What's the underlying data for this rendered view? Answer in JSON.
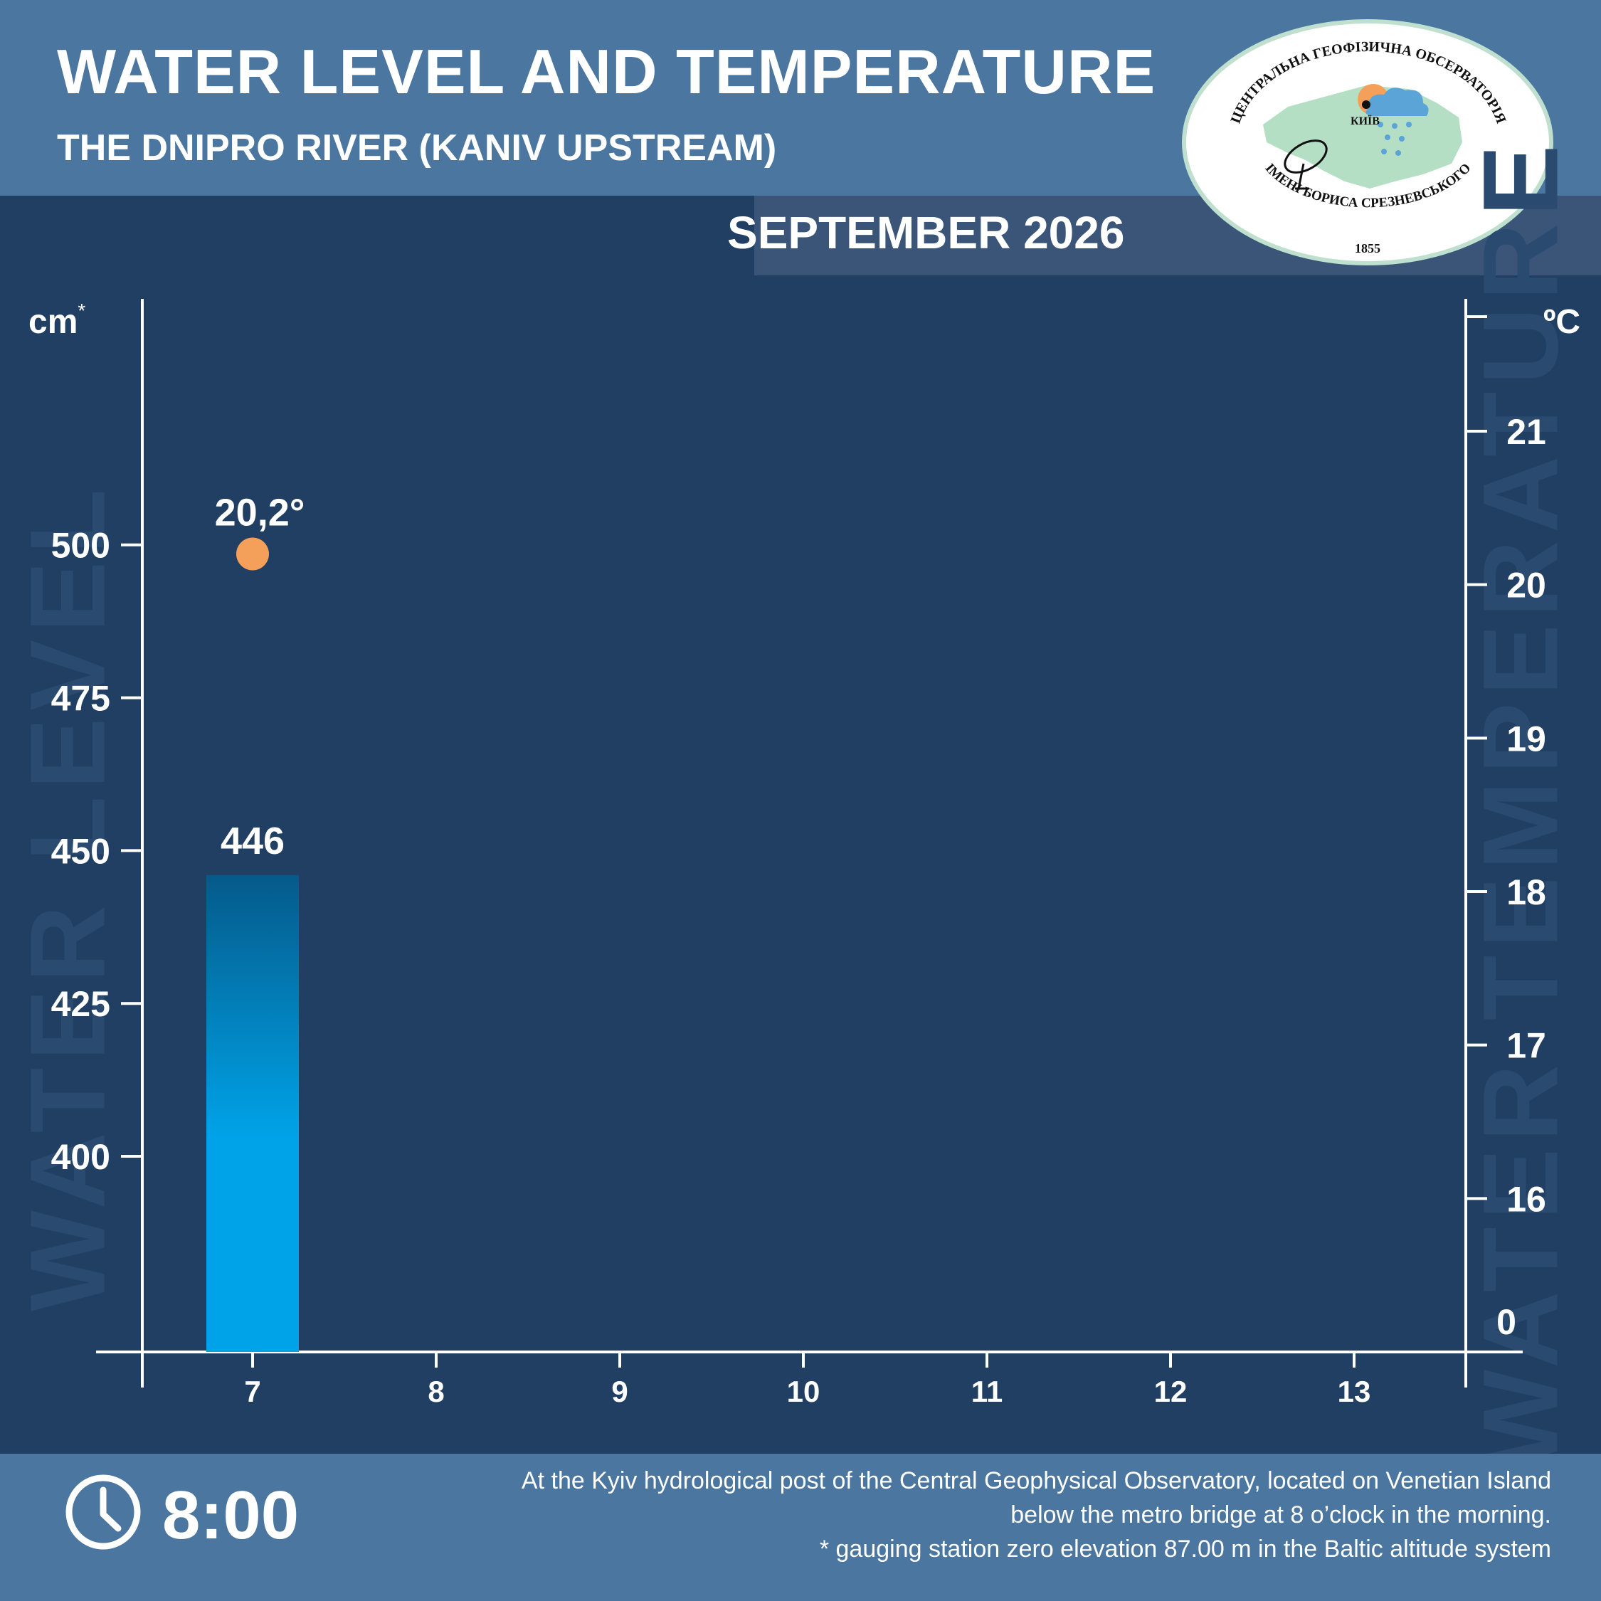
{
  "header": {
    "title": "WATER LEVEL AND TEMPERATURE",
    "subtitle": "THE DNIPRO RIVER (KANIV UPSTREAM)",
    "month": "SEPTEMBER 2026"
  },
  "logo": {
    "text_top": "ЦЕНТРАЛЬНА ГЕОФІЗИЧНА ОБСЕРВАТОРІЯ",
    "text_bottom": "ІМЕНІ БОРИСА СРЕЗНЕВСЬКОГО",
    "year": "1855",
    "city": "КИЇВ"
  },
  "watermarks": {
    "left": "WATER LEVEL",
    "right": "WATER TEMPERATURE"
  },
  "footer": {
    "time": "8:00",
    "note_lines": [
      "At the Kyiv hydrological post of the Central Geophysical Observatory, located on Venetian Island",
      "below the metro bridge  at 8 o’clock in the morning.",
      "* gauging station zero elevation 87.00 m in the Baltic altitude system"
    ]
  },
  "colors": {
    "background": "#203f63",
    "band": "#4a76a0",
    "bar_top": "#055a8a",
    "bar_bottom": "#00a3e8",
    "temperature_marker": "#f5a05a"
  },
  "chart_data": {
    "type": "bar",
    "categories": [
      "7",
      "8",
      "9",
      "10",
      "11",
      "12",
      "13"
    ],
    "water_level": {
      "unit": "cm",
      "unit_marker": "*",
      "values": [
        446,
        null,
        null,
        null,
        null,
        null,
        null
      ],
      "labels": [
        "446",
        "",
        "",
        "",
        "",
        "",
        ""
      ],
      "ticks": [
        400,
        425,
        450,
        475,
        500
      ],
      "ylim": [
        368,
        535
      ]
    },
    "water_temperature": {
      "unit": "ºC",
      "values": [
        20.2,
        null,
        null,
        null,
        null,
        null,
        null
      ],
      "labels": [
        "20,2°",
        "",
        "",
        "",
        "",
        "",
        ""
      ],
      "ticks": [
        16,
        17,
        18,
        19,
        20,
        21
      ],
      "ylim": [
        15.0,
        21.7
      ],
      "zero_label": "0"
    }
  }
}
